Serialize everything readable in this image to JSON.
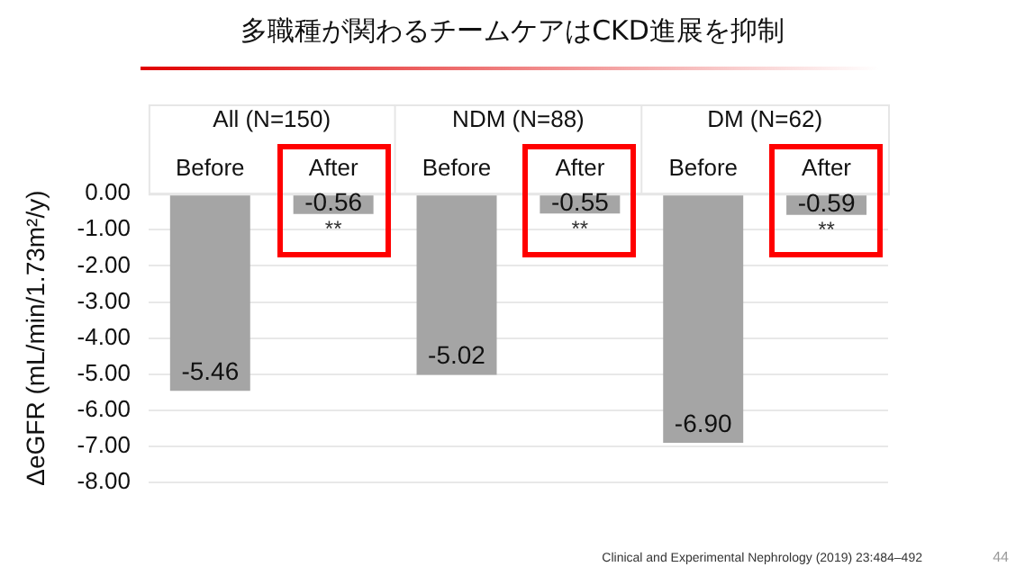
{
  "chart_data": {
    "type": "bar",
    "title": "多職種が関わるチームケアはCKD進展を抑制",
    "ylabel": "ΔeGFR (mL/min/1.73m²/y)",
    "categories": [
      "Before",
      "After",
      "Before",
      "After",
      "Before",
      "After"
    ],
    "values": [
      -5.46,
      -0.56,
      -5.02,
      -0.55,
      -6.9,
      -0.59
    ],
    "color": "#a5a5a5",
    "ylim": [
      -8,
      0
    ],
    "yticks": [
      {
        "value": 0,
        "label": "0.00"
      },
      {
        "value": -1,
        "label": "-1.00"
      },
      {
        "value": -2,
        "label": "-2.00"
      },
      {
        "value": -3,
        "label": "-3.00"
      },
      {
        "value": -4,
        "label": "-4.00"
      },
      {
        "value": -5,
        "label": "-5.00"
      },
      {
        "value": -6,
        "label": "-6.00"
      },
      {
        "value": -7,
        "label": "-7.00"
      },
      {
        "value": -8,
        "label": "-8.00"
      }
    ],
    "value_labels": [
      "-5.46",
      "-0.56",
      "-5.02",
      "-0.55",
      "-6.90",
      "-0.59"
    ],
    "annotations": [
      "All (N=150)",
      "NDM (N=88)",
      "DM (N=62)",
      "**",
      "**",
      "**",
      "Clinical and Experimental Nephrology (2019) 23:484–492",
      "44"
    ],
    "grid": "y",
    "legend": false
  }
}
